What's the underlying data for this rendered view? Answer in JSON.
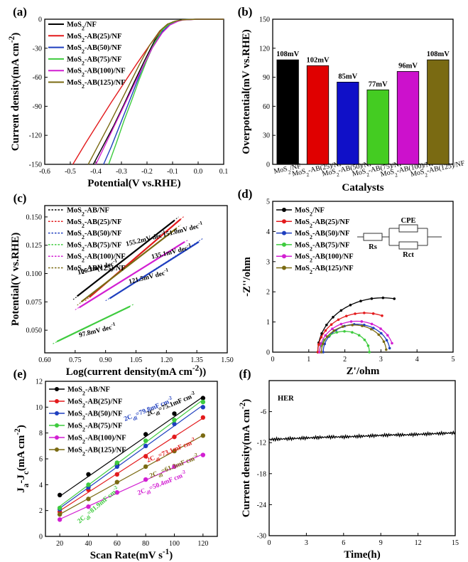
{
  "chart_data": [
    {
      "type": "line",
      "panel_label": "(a)",
      "xlabel": "Potential(V vs.RHE)",
      "ylabel": "Current density(mA cm⁻²)",
      "xlim": [
        -0.6,
        0.1
      ],
      "ylim": [
        -150,
        0
      ],
      "xticks": [
        "-0.6",
        "-0.5",
        "-0.4",
        "-0.3",
        "-0.2",
        "-0.1",
        "0.0",
        "0.1"
      ],
      "yticks": [
        "0",
        "-30",
        "-60",
        "-90",
        "-120",
        "-150"
      ],
      "series": [
        {
          "name": "MoS₂/NF",
          "color": "#000000",
          "x": [
            -0.41,
            -0.37,
            -0.33,
            -0.29,
            -0.25,
            -0.21,
            -0.17,
            -0.13,
            -0.1,
            -0.08,
            -0.06,
            0.0,
            0.1
          ],
          "y": [
            -150,
            -130,
            -110,
            -88,
            -65,
            -43,
            -22,
            -8,
            -3,
            -1.5,
            -0.5,
            0,
            0
          ]
        },
        {
          "name": "MoS₂-AB(25)/NF",
          "color": "#e31a1c",
          "x": [
            -0.49,
            -0.44,
            -0.39,
            -0.34,
            -0.29,
            -0.24,
            -0.19,
            -0.15,
            -0.12,
            -0.09,
            -0.06,
            0.0,
            0.1
          ],
          "y": [
            -150,
            -128,
            -107,
            -86,
            -66,
            -46,
            -27,
            -13,
            -6,
            -2.5,
            -0.8,
            0,
            0
          ]
        },
        {
          "name": "MoS₂-AB(50)/NF",
          "color": "#1f3fbf",
          "x": [
            -0.37,
            -0.34,
            -0.31,
            -0.28,
            -0.25,
            -0.22,
            -0.18,
            -0.14,
            -0.11,
            -0.08,
            -0.06,
            0.0,
            0.1
          ],
          "y": [
            -150,
            -132,
            -112,
            -92,
            -72,
            -52,
            -30,
            -13,
            -5,
            -2,
            -0.6,
            0,
            0
          ]
        },
        {
          "name": "MoS₂-AB(75)/NF",
          "color": "#3ecb3e",
          "x": [
            -0.35,
            -0.32,
            -0.29,
            -0.26,
            -0.23,
            -0.2,
            -0.17,
            -0.14,
            -0.11,
            -0.08,
            -0.06,
            0.0,
            0.1
          ],
          "y": [
            -150,
            -128,
            -105,
            -84,
            -62,
            -42,
            -24,
            -11,
            -4.5,
            -1.8,
            -0.5,
            0,
            0
          ]
        },
        {
          "name": "MoS₂-AB(100)/NF",
          "color": "#d21fd2",
          "x": [
            -0.4,
            -0.36,
            -0.32,
            -0.28,
            -0.24,
            -0.21,
            -0.18,
            -0.14,
            -0.11,
            -0.08,
            -0.06,
            0.0,
            0.1
          ],
          "y": [
            -150,
            -128,
            -106,
            -84,
            -62,
            -46,
            -30,
            -14,
            -6,
            -2.3,
            -0.7,
            0,
            0
          ]
        },
        {
          "name": "MoS₂-AB(125)/NF",
          "color": "#7a6a12",
          "x": [
            -0.43,
            -0.39,
            -0.35,
            -0.31,
            -0.27,
            -0.23,
            -0.19,
            -0.15,
            -0.12,
            -0.09,
            -0.06,
            0.0,
            0.1
          ],
          "y": [
            -150,
            -130,
            -110,
            -89,
            -68,
            -47,
            -27,
            -12,
            -5,
            -2,
            -0.6,
            0,
            0
          ]
        }
      ]
    },
    {
      "type": "bar",
      "panel_label": "(b)",
      "xlabel": "Catalysts",
      "ylabel": "Overpotential(mV vs.RHE)",
      "ylim": [
        0,
        150
      ],
      "yticks": [
        "0",
        "30",
        "60",
        "90",
        "120",
        "150"
      ],
      "categories": [
        "MoS₂/NF",
        "MoS₂-AB(25)/NF",
        "MoS₂-AB(50)/NF",
        "MoS₂-AB(75)/NF",
        "MoS₂-AB(100)/NF",
        "MoS₂-AB(125)/NF"
      ],
      "values": [
        108,
        102,
        85,
        77,
        96,
        108
      ],
      "value_labels": [
        "108mV",
        "102mV",
        "85mV",
        "77mV",
        "96mV",
        "108mV"
      ],
      "colors": [
        "#000000",
        "#e00000",
        "#1010c8",
        "#44cc22",
        "#cc11cc",
        "#7a6a12"
      ]
    },
    {
      "type": "line",
      "panel_label": "(c)",
      "xlabel": "Log(current density(mA cm⁻²))",
      "ylabel": "Potential(V vs.RHE)",
      "xlim": [
        0.6,
        1.5
      ],
      "ylim": [
        0.03,
        0.16
      ],
      "xticks": [
        "0.60",
        "0.75",
        "0.90",
        "1.05",
        "1.20",
        "1.35",
        "1.50"
      ],
      "yticks": [
        "0.050",
        "0.075",
        "0.100",
        "0.125",
        "0.150"
      ],
      "series": [
        {
          "name": "MoS₂-AB/NF",
          "color": "#000000",
          "x": [
            0.76,
            1.24
          ],
          "y": [
            0.08,
            0.147
          ],
          "fit_x": [
            0.74,
            1.26
          ],
          "fit_y": [
            0.077,
            0.15
          ]
        },
        {
          "name": "MoS₂-AB(25)/NF",
          "color": "#e31a1c",
          "x": [
            0.82,
            1.27
          ],
          "y": [
            0.079,
            0.148
          ],
          "fit_x": [
            0.8,
            1.29
          ],
          "fit_y": [
            0.076,
            0.151
          ]
        },
        {
          "name": "MoS₂-AB(50)/NF",
          "color": "#1f3fbf",
          "x": [
            0.92,
            1.36
          ],
          "y": [
            0.078,
            0.128
          ],
          "fit_x": [
            0.9,
            1.38
          ],
          "fit_y": [
            0.076,
            0.131
          ]
        },
        {
          "name": "MoS₂-AB(75)/NF",
          "color": "#3ecb3e",
          "x": [
            0.66,
            1.02
          ],
          "y": [
            0.04,
            0.071
          ],
          "fit_x": [
            0.64,
            1.04
          ],
          "fit_y": [
            0.038,
            0.073
          ]
        },
        {
          "name": "MoS₂-AB(100)/NF",
          "color": "#d21fd2",
          "x": [
            0.77,
            1.29
          ],
          "y": [
            0.07,
            0.128
          ],
          "fit_x": [
            0.75,
            1.31
          ],
          "fit_y": [
            0.068,
            0.13
          ]
        },
        {
          "name": "MoS₂-AB(125)/NF",
          "color": "#7a6a12",
          "x": [
            0.78,
            1.25
          ],
          "y": [
            0.075,
            0.14
          ],
          "fit_x": [
            0.76,
            1.27
          ],
          "fit_y": [
            0.072,
            0.143
          ]
        }
      ],
      "annotations": [
        "155.2mV dec⁻¹",
        "151.0mV dec⁻¹",
        "135.1mV dec⁻¹",
        "106.2mV dec⁻¹",
        "121.5mV dec⁻¹",
        "97.8mV dec⁻¹"
      ]
    },
    {
      "type": "scatter",
      "panel_label": "(d)",
      "xlabel": "Z'/ohm",
      "ylabel": "-Z''/ohm",
      "xlim": [
        0,
        5
      ],
      "ylim": [
        0,
        5
      ],
      "xticks": [
        "0",
        "1",
        "2",
        "3",
        "4",
        "5"
      ],
      "yticks": [
        "0",
        "1",
        "2",
        "3",
        "4",
        "5"
      ],
      "circuit_labels": {
        "rs": "Rs",
        "cpe": "CPE",
        "rct": "Rct"
      },
      "series": [
        {
          "name": "MoS₂/NF",
          "color": "#000000",
          "rs": 1.25,
          "diameter": 3.6,
          "end_angle": 1.75
        },
        {
          "name": "MoS₂-AB(25)/NF",
          "color": "#e31a1c",
          "rs": 1.25,
          "diameter": 2.6,
          "end_angle": 1.95
        },
        {
          "name": "MoS₂-AB(50)/NF",
          "color": "#1f3fbf",
          "rs": 1.4,
          "diameter": 1.85,
          "end_angle": 3.0
        },
        {
          "name": "MoS₂-AB(75)/NF",
          "color": "#3ecb3e",
          "rs": 1.3,
          "diameter": 1.38,
          "end_angle": 3.14
        },
        {
          "name": "MoS₂-AB(100)/NF",
          "color": "#d21fd2",
          "rs": 1.3,
          "diameter": 2.05,
          "end_angle": 2.85
        },
        {
          "name": "MoS₂-AB(125)/NF",
          "color": "#7a6a12",
          "rs": 1.35,
          "diameter": 1.8,
          "end_angle": 3.05
        }
      ]
    },
    {
      "type": "scatter",
      "panel_label": "(e)",
      "xlabel": "Scan Rate(mV s⁻¹)",
      "ylabel": "Jₐ-J꜀(mA cm⁻²)",
      "xlim": [
        10,
        130
      ],
      "ylim": [
        0,
        12
      ],
      "xticks": [
        "20",
        "40",
        "60",
        "80",
        "100",
        "120"
      ],
      "yticks": [
        "0",
        "2",
        "4",
        "6",
        "8",
        "10",
        "12"
      ],
      "x": [
        20,
        40,
        60,
        80,
        100,
        120
      ],
      "series": [
        {
          "name": "MoS₂-AB/NF",
          "color": "#000000",
          "values": [
            3.2,
            4.8,
            5.6,
            7.9,
            9.5,
            10.7
          ]
        },
        {
          "name": "MoS₂-AB(25)/NF",
          "color": "#e31a1c",
          "values": [
            1.9,
            3.6,
            4.8,
            6.2,
            7.7,
            9.2
          ]
        },
        {
          "name": "MoS₂-AB(50)/NF",
          "color": "#1f3fbf",
          "values": [
            2.1,
            3.8,
            5.4,
            7.0,
            8.7,
            10.0
          ]
        },
        {
          "name": "MoS₂-AB(75)/NF",
          "color": "#3ecb3e",
          "values": [
            2.2,
            4.0,
            5.7,
            7.4,
            9.0,
            10.4
          ]
        },
        {
          "name": "MoS₂-AB(100)/NF",
          "color": "#d21fd2",
          "values": [
            1.3,
            2.3,
            3.4,
            4.4,
            5.4,
            6.3
          ]
        },
        {
          "name": "MoS₂-AB(125)/NF",
          "color": "#7a6a12",
          "values": [
            1.7,
            2.9,
            4.2,
            5.4,
            6.6,
            7.8
          ]
        }
      ],
      "annotations": [
        "2C꜀ₗ=79.8mF cm⁻²",
        "2C꜀ₗ=75.1mF cm⁻²",
        "2C꜀ₗ=73.1mF cm⁻²",
        "2C꜀ₗ=61.3mF cm⁻²",
        "2C꜀ₗ=50.4mF cm⁻²",
        "2C꜀ₗ=81.9mF cm⁻²"
      ]
    },
    {
      "type": "line",
      "panel_label": "(f)",
      "xlabel": "Time(h)",
      "ylabel": "Current density(mA cm⁻²)",
      "xlim": [
        0,
        15
      ],
      "ylim": [
        -30,
        0
      ],
      "xticks": [
        "0",
        "3",
        "6",
        "9",
        "12",
        "15"
      ],
      "yticks": [
        "-6",
        "-12",
        "-18",
        "-24",
        "-30"
      ],
      "legend_text": "HER",
      "series": [
        {
          "name": "HER",
          "color": "#000000",
          "x": [
            0,
            1,
            2,
            3,
            4,
            5,
            6,
            7,
            8,
            9,
            10,
            11,
            12,
            13,
            14,
            15
          ],
          "y": [
            -11.4,
            -11.3,
            -11.2,
            -11.1,
            -11.0,
            -10.9,
            -10.9,
            -10.8,
            -10.7,
            -10.6,
            -10.5,
            -10.5,
            -10.4,
            -10.3,
            -10.2,
            -10.1
          ]
        }
      ]
    }
  ]
}
